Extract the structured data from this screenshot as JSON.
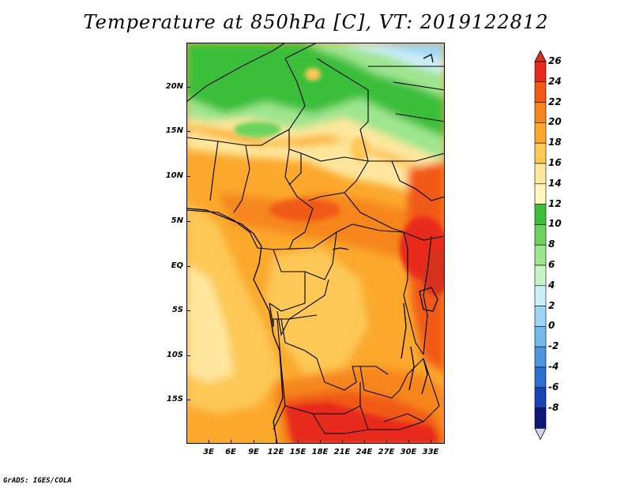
{
  "title": "Temperature at 850hPa [C], VT: 2019122812",
  "credit": "GrADS: IGES/COLA",
  "map": {
    "lon_range": [
      0,
      35
    ],
    "lat_range": [
      -20,
      25
    ],
    "lat_labels": [
      "20N",
      "15N",
      "10N",
      "5N",
      "EQ",
      "5S",
      "10S",
      "15S"
    ],
    "lon_labels": [
      "3E",
      "6E",
      "9E",
      "12E",
      "15E",
      "18E",
      "21E",
      "24E",
      "27E",
      "30E",
      "33E"
    ]
  },
  "colorbar": {
    "labels": [
      "26",
      "24",
      "22",
      "20",
      "18",
      "16",
      "14",
      "12",
      "10",
      "8",
      "6",
      "4",
      "2",
      "0",
      "-2",
      "-4",
      "-6",
      "-8"
    ],
    "colors": [
      "#e82a1c",
      "#f15a17",
      "#f6861c",
      "#fba82d",
      "#fdc857",
      "#fee79d",
      "#fff5be",
      "#3bbf3a",
      "#6cd35f",
      "#9ee58f",
      "#c9f2c4",
      "#cdeef8",
      "#9dd6f4",
      "#72b9ec",
      "#4d95df",
      "#2d6fd1",
      "#1844b4",
      "#0c1777"
    ],
    "top_color": "#d7301d",
    "bottom_color": "#d4d4f4"
  }
}
